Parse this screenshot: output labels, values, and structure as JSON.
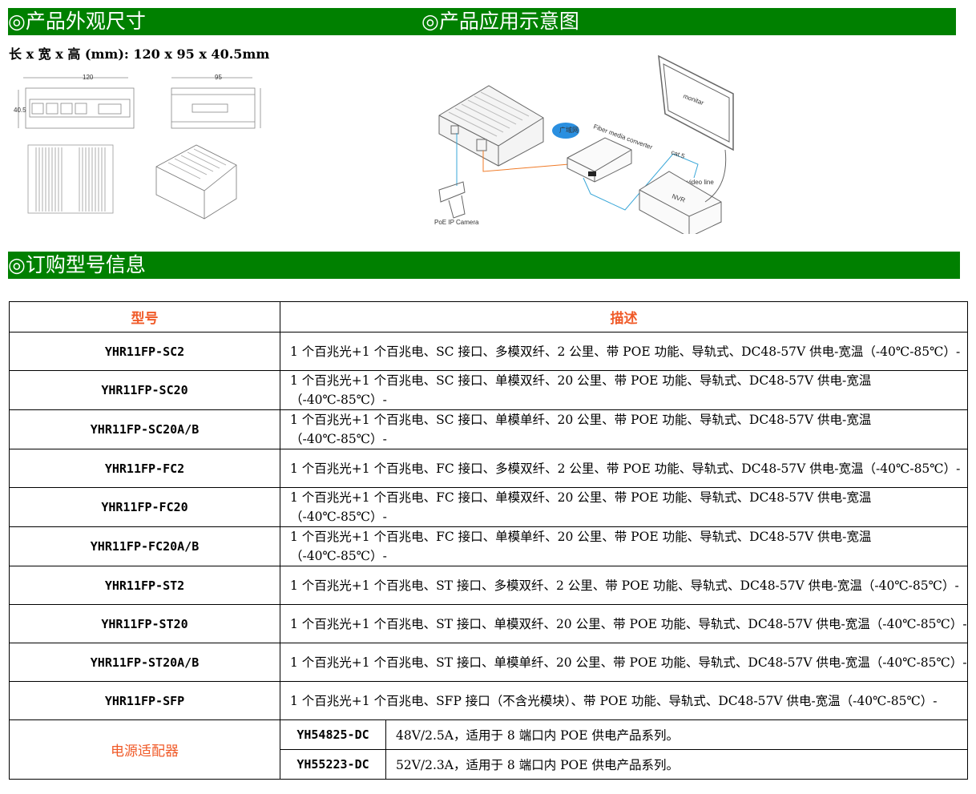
{
  "sections": {
    "dimensions_title": "◎产品外观尺寸",
    "application_title": "◎产品应用示意图",
    "ordering_title": "◎订购型号信息"
  },
  "dimensions": {
    "text": "长 x 宽 x 高 (mm): 120 x 95 x 40.5mm",
    "drawing_labels": {
      "length": "120",
      "width": "95",
      "height": "40.5"
    }
  },
  "diagram": {
    "camera": "PoE IP Camera",
    "converter": "Fiber media converter",
    "cloud": "广域网",
    "cable": "cat.5",
    "video": "video line",
    "nvr": "NVR",
    "monitor": "monitar"
  },
  "colors": {
    "header_green": "#008000",
    "accent_orange": "#f05a28"
  },
  "table": {
    "headers": [
      "型号",
      "描述"
    ],
    "rows": [
      {
        "model": "YHR11FP-SC2",
        "desc": "1 个百兆光+1 个百兆电、SC 接口、多模双纤、2 公里、带 POE 功能、导轨式、DC48-57V 供电-宽温（-40℃-85℃）-"
      },
      {
        "model": "YHR11FP-SC20",
        "desc": "1 个百兆光+1 个百兆电、SC 接口、单模双纤、20 公里、带 POE 功能、导轨式、DC48-57V 供电-宽温（-40℃-85℃）-"
      },
      {
        "model": "YHR11FP-SC20A/B",
        "desc": "1 个百兆光+1 个百兆电、SC 接口、单模单纤、20 公里、带 POE 功能、导轨式、DC48-57V 供电-宽温（-40℃-85℃）-"
      },
      {
        "model": "YHR11FP-FC2",
        "desc": "1 个百兆光+1 个百兆电、FC 接口、多模双纤、2 公里、带 POE 功能、导轨式、DC48-57V 供电-宽温（-40℃-85℃）-"
      },
      {
        "model": "YHR11FP-FC20",
        "desc": "1 个百兆光+1 个百兆电、FC 接口、单模双纤、20 公里、带 POE 功能、导轨式、DC48-57V 供电-宽温（-40℃-85℃）-"
      },
      {
        "model": "YHR11FP-FC20A/B",
        "desc": "1 个百兆光+1 个百兆电、FC 接口、单模单纤、20 公里、带 POE 功能、导轨式、DC48-57V 供电-宽温（-40℃-85℃）-"
      },
      {
        "model": "YHR11FP-ST2",
        "desc": "1 个百兆光+1 个百兆电、ST 接口、多模双纤、2 公里、带 POE 功能、导轨式、DC48-57V 供电-宽温（-40℃-85℃）-"
      },
      {
        "model": "YHR11FP-ST20",
        "desc": "1 个百兆光+1 个百兆电、ST 接口、单模双纤、20 公里、带 POE 功能、导轨式、DC48-57V 供电-宽温（-40℃-85℃）-"
      },
      {
        "model": "YHR11FP-ST20A/B",
        "desc": "1 个百兆光+1 个百兆电、ST 接口、单模单纤、20 公里、带 POE 功能、导轨式、DC48-57V 供电-宽温（-40℃-85℃）-"
      },
      {
        "model": "YHR11FP-SFP",
        "desc": "1 个百兆光+1 个百兆电、SFP 接口（不含光模块）、带 POE 功能、导轨式、DC48-57V 供电-宽温（-40℃-85℃）-"
      }
    ],
    "power": {
      "label": "电源适配器",
      "items": [
        {
          "model": "YH54825-DC",
          "desc": "48V/2.5A，适用于 8 端口内 POE 供电产品系列。"
        },
        {
          "model": "YH55223-DC",
          "desc": "52V/2.3A，适用于 8 端口内 POE 供电产品系列。"
        }
      ]
    }
  }
}
